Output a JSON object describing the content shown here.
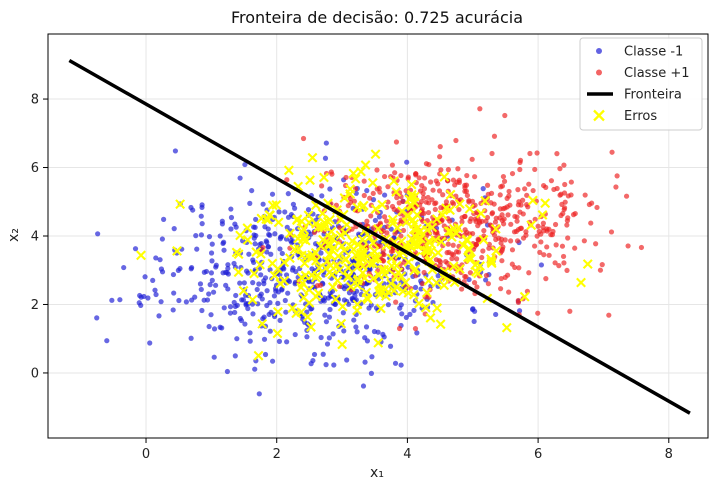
{
  "chart_data": {
    "type": "scatter",
    "title": "Fronteira de decisão: 0.725 acurácia",
    "xlabel": "x₁",
    "ylabel": "x₂",
    "xlim": [
      -1.5,
      8.6
    ],
    "ylim": [
      -1.9,
      9.9
    ],
    "xticks": [
      0,
      2,
      4,
      6,
      8
    ],
    "yticks": [
      0,
      2,
      4,
      6,
      8
    ],
    "grid": true,
    "legend_position": "top-right",
    "series": [
      {
        "name": "Classe -1",
        "marker": "circle",
        "color": "#1f1fd6",
        "center": [
          2.5,
          3.0
        ],
        "spread": [
          1.15,
          1.2
        ],
        "count": 620,
        "seed": 11
      },
      {
        "name": "Classe +1",
        "marker": "circle",
        "color": "#ee2222",
        "center": [
          4.6,
          4.3
        ],
        "spread": [
          1.05,
          1.0
        ],
        "count": 620,
        "seed": 29
      },
      {
        "name": "Erros",
        "marker": "x",
        "color": "#ffff00",
        "center": [
          3.4,
          3.5
        ],
        "spread": [
          1.05,
          0.95
        ],
        "count": 330,
        "seed": 47
      }
    ],
    "boundary": {
      "name": "Fronteira",
      "color": "#000000",
      "x": [
        -1.15,
        8.3
      ],
      "y": [
        9.1,
        -1.15
      ]
    },
    "legend": [
      {
        "label": "Classe -1",
        "kind": "dot",
        "color": "#1f1fd6"
      },
      {
        "label": "Classe +1",
        "kind": "dot",
        "color": "#ee2222"
      },
      {
        "label": "Fronteira",
        "kind": "line",
        "color": "#000000"
      },
      {
        "label": "Erros",
        "kind": "x",
        "color": "#ffff00"
      }
    ]
  }
}
